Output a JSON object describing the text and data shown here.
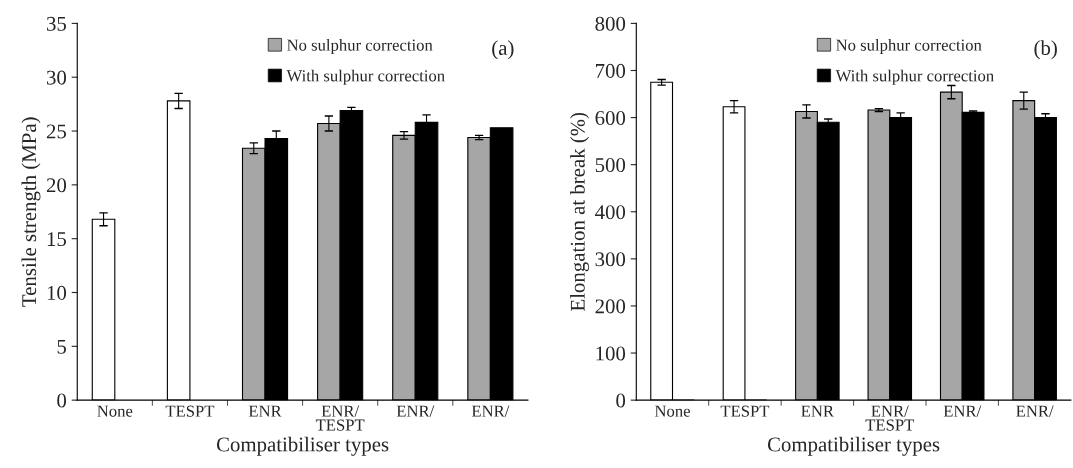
{
  "chart_data": [
    {
      "type": "bar",
      "xlabel": "Compatibiliser types",
      "ylabel": "Tensile strength (MPa)",
      "categories": [
        "None",
        "TESPT",
        "ENR",
        "ENR/\nTESPT",
        "ENR/",
        "ENR/"
      ],
      "ylim": [
        0,
        35
      ],
      "yticks": [
        0,
        5,
        10,
        15,
        20,
        25,
        30,
        35
      ],
      "legend": "top",
      "annotations": [
        "(a)"
      ],
      "series": [
        {
          "name": "No sulphur correction",
          "color": "#a6a6a6",
          "colors": [
            "#ffffff",
            "#ffffff",
            "#a6a6a6",
            "#a6a6a6",
            "#a6a6a6",
            "#a6a6a6"
          ],
          "values": [
            16.8,
            27.8,
            23.4,
            25.7,
            24.6,
            24.4
          ],
          "errors": [
            0.6,
            0.7,
            0.5,
            0.7,
            0.35,
            0.2
          ]
        },
        {
          "name": "With sulphur correction",
          "color": "#000000",
          "values": [
            null,
            null,
            24.3,
            26.9,
            25.8,
            25.3
          ],
          "errors": [
            null,
            null,
            0.7,
            0.3,
            0.7,
            null
          ]
        }
      ]
    },
    {
      "type": "bar",
      "xlabel": "Compatibiliser types",
      "ylabel": "Elongation at break (%)",
      "categories": [
        "None",
        "TESPT",
        "ENR",
        "ENR/\nTESPT",
        "ENR/",
        "ENR/"
      ],
      "ylim": [
        0,
        800
      ],
      "yticks": [
        0,
        100,
        200,
        300,
        400,
        500,
        600,
        700,
        800
      ],
      "legend": "top",
      "annotations": [
        "(b)"
      ],
      "series": [
        {
          "name": "No sulphur correction",
          "color": "#a6a6a6",
          "colors": [
            "#ffffff",
            "#ffffff",
            "#a6a6a6",
            "#a6a6a6",
            "#a6a6a6",
            "#a6a6a6"
          ],
          "values": [
            675,
            623,
            613,
            616,
            654,
            636
          ],
          "errors": [
            6,
            13,
            14,
            3,
            14,
            18
          ]
        },
        {
          "name": "With sulphur correction",
          "color": "#000000",
          "values": [
            0,
            0,
            590,
            600,
            611,
            600
          ],
          "errors": [
            null,
            null,
            7,
            10,
            3,
            8
          ]
        }
      ]
    }
  ]
}
